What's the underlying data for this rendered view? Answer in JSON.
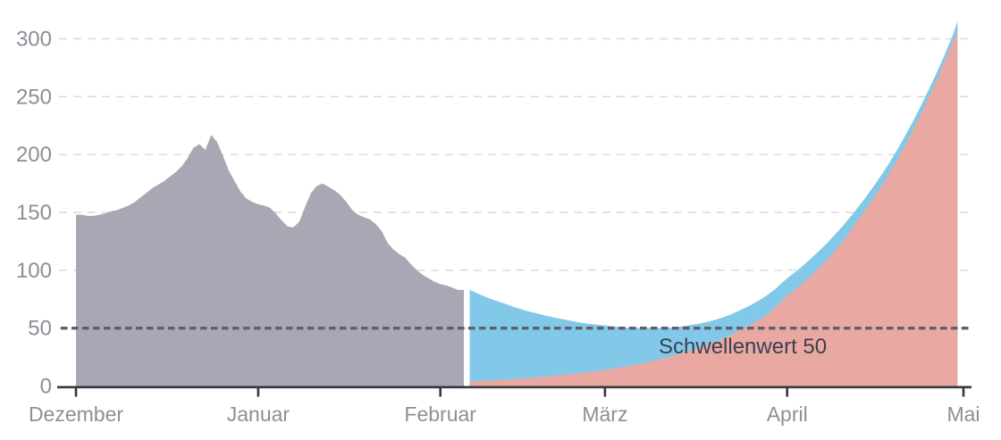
{
  "chart_data": {
    "type": "area",
    "title": "",
    "x_axis": {
      "tick_labels": [
        "Dezember",
        "Januar",
        "Februar",
        "März",
        "April",
        "Mai"
      ],
      "tick_days": [
        0,
        31,
        62,
        90,
        121,
        151
      ],
      "domain_days": [
        0,
        151
      ]
    },
    "y_axis": {
      "ticks": [
        0,
        50,
        100,
        150,
        200,
        250,
        300
      ],
      "range": [
        0,
        320
      ],
      "grid": "dashed"
    },
    "threshold": {
      "value": 50,
      "label": "Schwellenwert 50"
    },
    "series": [
      {
        "id": "history-gray",
        "color": "#a8a7b4",
        "smooth": false,
        "points": [
          [
            0,
            148
          ],
          [
            1,
            148
          ],
          [
            2,
            147
          ],
          [
            3,
            147
          ],
          [
            4,
            148
          ],
          [
            5,
            149
          ],
          [
            6,
            151
          ],
          [
            7,
            152
          ],
          [
            8,
            154
          ],
          [
            9,
            156
          ],
          [
            10,
            159
          ],
          [
            11,
            163
          ],
          [
            12,
            167
          ],
          [
            13,
            171
          ],
          [
            14,
            174
          ],
          [
            15,
            177
          ],
          [
            16,
            181
          ],
          [
            17,
            185
          ],
          [
            18,
            190
          ],
          [
            19,
            197
          ],
          [
            20,
            206
          ],
          [
            21,
            209
          ],
          [
            22,
            204
          ],
          [
            23,
            217
          ],
          [
            24,
            211
          ],
          [
            25,
            199
          ],
          [
            26,
            186
          ],
          [
            27,
            177
          ],
          [
            28,
            168
          ],
          [
            29,
            162
          ],
          [
            30,
            159
          ],
          [
            31,
            157
          ],
          [
            32,
            156
          ],
          [
            33,
            154
          ],
          [
            34,
            149
          ],
          [
            35,
            143
          ],
          [
            36,
            138
          ],
          [
            37,
            137
          ],
          [
            38,
            142
          ],
          [
            39,
            155
          ],
          [
            40,
            167
          ],
          [
            41,
            173
          ],
          [
            42,
            175
          ],
          [
            43,
            172
          ],
          [
            44,
            169
          ],
          [
            45,
            165
          ],
          [
            46,
            159
          ],
          [
            47,
            152
          ],
          [
            48,
            148
          ],
          [
            49,
            146
          ],
          [
            50,
            144
          ],
          [
            51,
            140
          ],
          [
            52,
            134
          ],
          [
            53,
            124
          ],
          [
            54,
            118
          ],
          [
            55,
            114
          ],
          [
            56,
            111
          ],
          [
            57,
            105
          ],
          [
            58,
            100
          ],
          [
            59,
            96
          ],
          [
            60,
            93
          ],
          [
            61,
            90
          ],
          [
            62,
            88
          ],
          [
            63,
            87
          ],
          [
            64,
            85
          ],
          [
            65,
            83
          ],
          [
            66,
            83
          ]
        ]
      },
      {
        "id": "scenario-blue",
        "color": "#82c8e8",
        "smooth": true,
        "points": [
          [
            67,
            83
          ],
          [
            69,
            78.5
          ],
          [
            71,
            74.5
          ],
          [
            73,
            71
          ],
          [
            75,
            67.5
          ],
          [
            77,
            64.5
          ],
          [
            79,
            62
          ],
          [
            81,
            59.5
          ],
          [
            83,
            57.5
          ],
          [
            85,
            55.5
          ],
          [
            87,
            54
          ],
          [
            89,
            52.8
          ],
          [
            91,
            51.8
          ],
          [
            93,
            50.8
          ],
          [
            95,
            50.2
          ],
          [
            97,
            50
          ],
          [
            99,
            50
          ],
          [
            101,
            50.3
          ],
          [
            103,
            51.5
          ],
          [
            105,
            53
          ],
          [
            107,
            55
          ],
          [
            109,
            57.5
          ],
          [
            111,
            61
          ],
          [
            113,
            65.5
          ],
          [
            115,
            70.5
          ],
          [
            117,
            76.5
          ],
          [
            119,
            84
          ],
          [
            121,
            93
          ],
          [
            123,
            101
          ],
          [
            125,
            110
          ],
          [
            127,
            119.5
          ],
          [
            129,
            130
          ],
          [
            131,
            141.5
          ],
          [
            133,
            154
          ],
          [
            135,
            167.5
          ],
          [
            137,
            182
          ],
          [
            139,
            198
          ],
          [
            141,
            215.5
          ],
          [
            143,
            234.5
          ],
          [
            145,
            255
          ],
          [
            147,
            277
          ],
          [
            149,
            301
          ],
          [
            150,
            315
          ]
        ]
      },
      {
        "id": "scenario-red",
        "color": "#eaa8a2",
        "smooth": true,
        "points": [
          [
            67,
            4
          ],
          [
            70,
            4.7
          ],
          [
            73,
            5.5
          ],
          [
            76,
            6.5
          ],
          [
            79,
            7.7
          ],
          [
            82,
            9
          ],
          [
            85,
            10.6
          ],
          [
            88,
            12.5
          ],
          [
            91,
            14.7
          ],
          [
            94,
            17.3
          ],
          [
            97,
            20.3
          ],
          [
            100,
            23.9
          ],
          [
            103,
            28.1
          ],
          [
            106,
            33
          ],
          [
            109,
            38.8
          ],
          [
            112,
            45.6
          ],
          [
            115,
            53.6
          ],
          [
            117,
            59.5
          ],
          [
            119,
            68
          ],
          [
            121,
            78
          ],
          [
            123,
            86
          ],
          [
            125,
            95
          ],
          [
            127,
            105
          ],
          [
            129,
            116
          ],
          [
            131,
            128.5
          ],
          [
            133,
            143
          ],
          [
            135,
            157
          ],
          [
            137,
            172
          ],
          [
            139,
            189
          ],
          [
            141,
            207
          ],
          [
            143,
            227
          ],
          [
            145,
            248
          ],
          [
            147,
            271
          ],
          [
            149,
            295
          ],
          [
            150,
            306
          ]
        ]
      }
    ],
    "colors": {
      "history_area": "#a8a7b4",
      "scenario_blue_area": "#82c8e8",
      "scenario_red_area": "#eaa8a2",
      "threshold_line": "#5f5f6b",
      "threshold_label": "#3a4150",
      "gridline": "#d9d9dd",
      "axis_line": "#36363c",
      "tick_label": "#8e8e98",
      "background": "#ffffff"
    },
    "legend": "none"
  }
}
